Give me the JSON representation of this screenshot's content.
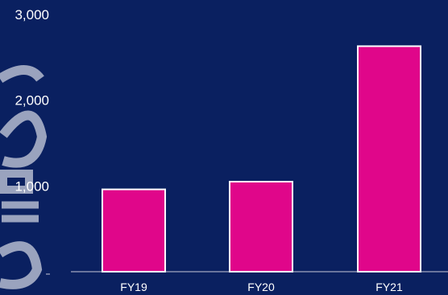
{
  "chart_data": {
    "type": "bar",
    "categories": [
      "FY19",
      "FY20",
      "FY21"
    ],
    "values": [
      960,
      1050,
      2630
    ],
    "ylim": [
      0,
      3000
    ],
    "yticks": [
      {
        "value": 1000,
        "label": "1,000"
      },
      {
        "value": 2000,
        "label": "2,000"
      },
      {
        "value": 3000,
        "label": "3,000"
      }
    ],
    "grid": false,
    "colors": {
      "background": "#0a2060",
      "bar": "#e0068a",
      "bar_outline": "#ffffff",
      "text": "#ffffff"
    }
  }
}
